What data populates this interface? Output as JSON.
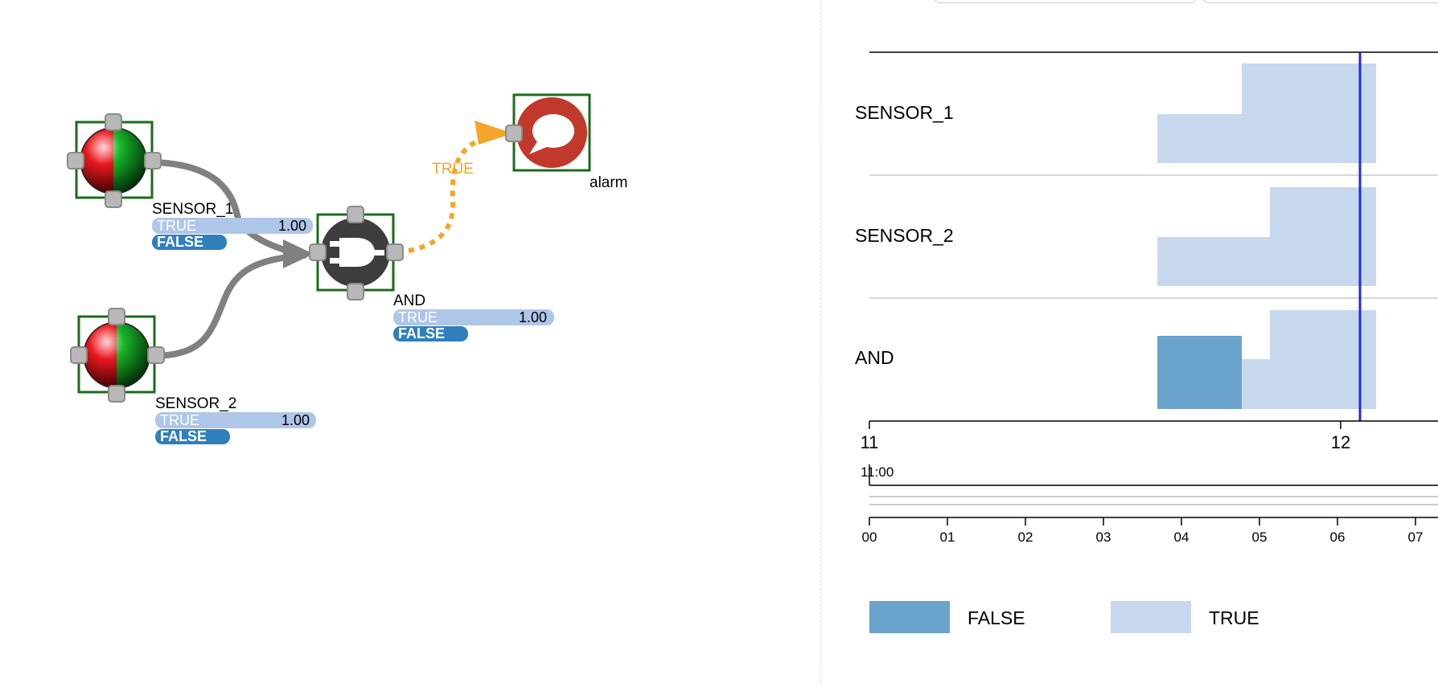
{
  "network": {
    "nodes": {
      "sensor1": {
        "label": "SENSOR_1",
        "true_label": "TRUE",
        "true_value": "1.00",
        "false_label": "FALSE",
        "true_fraction": 1.0,
        "false_fraction": 0.0
      },
      "sensor2": {
        "label": "SENSOR_2",
        "true_label": "TRUE",
        "true_value": "1.00",
        "false_label": "FALSE",
        "true_fraction": 1.0,
        "false_fraction": 0.0
      },
      "and": {
        "label": "AND",
        "true_label": "TRUE",
        "true_value": "1.00",
        "false_label": "FALSE",
        "true_fraction": 1.0,
        "false_fraction": 0.0
      },
      "alarm": {
        "label": "alarm"
      }
    },
    "edge_label": "TRUE",
    "colors": {
      "node_border": "#1c6b1c",
      "port": "#b8b8b8",
      "edge": "#808080",
      "active_edge": "#f4a62a",
      "true_bar": "#aec6e8",
      "false_bar": "#2f7fbd",
      "alarm": "#c0392b",
      "gate": "#3d3d3d"
    }
  },
  "timeline": {
    "rows": [
      "SENSOR_1",
      "SENSOR_2",
      "AND"
    ],
    "major_ticks": [
      "11",
      "12"
    ],
    "minor_label": "11:00",
    "overview_ticks": [
      "00",
      "01",
      "02",
      "03",
      "04",
      "05",
      "06",
      "07"
    ],
    "legend": [
      {
        "label": "FALSE",
        "color": "#6aa3cc"
      },
      {
        "label": "TRUE",
        "color": "#c7d8ee"
      }
    ],
    "cursor_color": "#1f2fd6"
  }
}
